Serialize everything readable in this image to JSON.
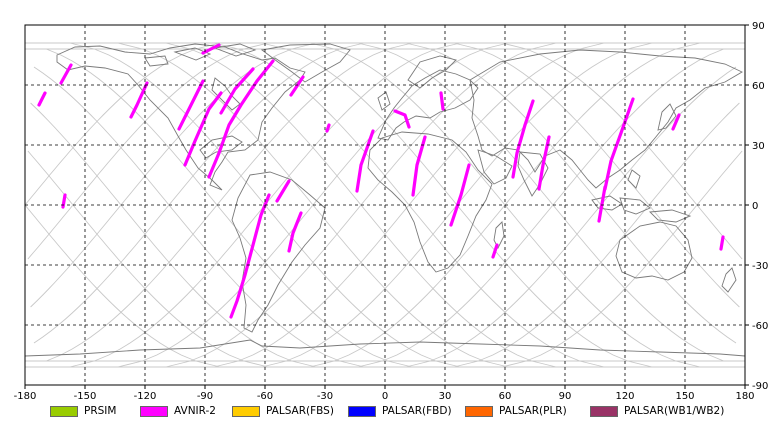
{
  "map": {
    "x_ticks": [
      "-180",
      "-150",
      "-120",
      "-90",
      "-60",
      "-30",
      "0",
      "30",
      "60",
      "90",
      "120",
      "150",
      "180"
    ],
    "y_ticks": [
      "90",
      "60",
      "30",
      "0",
      "-30",
      "-60",
      "-90"
    ],
    "grid_style": "dashed",
    "track_color": "#c8c8c8",
    "coast_color": "#7a7a7a",
    "observation_color": "#ff00ff"
  },
  "legend": [
    {
      "label": "PRSIM",
      "color": "#99cc00"
    },
    {
      "label": "AVNIR-2",
      "color": "#ff00ff"
    },
    {
      "label": "PALSAR(FBS)",
      "color": "#ffcc00"
    },
    {
      "label": "PALSAR(FBD)",
      "color": "#0000ff"
    },
    {
      "label": "PALSAR(PLR)",
      "color": "#ff6600"
    },
    {
      "label": "PALSAR(WB1/WB2)",
      "color": "#993366"
    }
  ],
  "chart_data": {
    "type": "map",
    "xlim": [
      -180,
      180
    ],
    "ylim": [
      -90,
      90
    ],
    "grid": true,
    "legend_position": "bottom",
    "legend_entries": [
      "PRSIM",
      "AVNIR-2",
      "PALSAR(FBS)",
      "PALSAR(FBD)",
      "PALSAR(PLR)",
      "PALSAR(WB1/WB2)"
    ],
    "observation_segments": [
      {
        "sensor": "AVNIR-2",
        "points": [
          [
            -157,
            70
          ],
          [
            -162,
            61
          ]
        ]
      },
      {
        "sensor": "AVNIR-2",
        "points": [
          [
            -170,
            56
          ],
          [
            -173,
            50
          ]
        ]
      },
      {
        "sensor": "AVNIR-2",
        "points": [
          [
            -160,
            5
          ],
          [
            -161,
            -1
          ]
        ]
      },
      {
        "sensor": "AVNIR-2",
        "points": [
          [
            -119,
            61
          ],
          [
            -124,
            50
          ],
          [
            -127,
            44
          ]
        ]
      },
      {
        "sensor": "AVNIR-2",
        "points": [
          [
            -91,
            76
          ],
          [
            -83,
            80
          ]
        ]
      },
      {
        "sensor": "AVNIR-2",
        "points": [
          [
            -91,
            62
          ],
          [
            -97,
            50
          ],
          [
            -103,
            38
          ]
        ]
      },
      {
        "sensor": "AVNIR-2",
        "points": [
          [
            -82,
            56
          ],
          [
            -88,
            48
          ],
          [
            -95,
            32
          ],
          [
            -100,
            20
          ]
        ]
      },
      {
        "sensor": "AVNIR-2",
        "points": [
          [
            -66,
            68
          ],
          [
            -75,
            58
          ],
          [
            -82,
            46
          ]
        ]
      },
      {
        "sensor": "AVNIR-2",
        "points": [
          [
            -56,
            72
          ],
          [
            -64,
            62
          ],
          [
            -72,
            50
          ],
          [
            -78,
            40
          ],
          [
            -83,
            26
          ],
          [
            -88,
            14
          ]
        ]
      },
      {
        "sensor": "AVNIR-2",
        "points": [
          [
            -58,
            5
          ],
          [
            -62,
            -5
          ],
          [
            -66,
            -20
          ],
          [
            -70,
            -35
          ],
          [
            -74,
            -48
          ],
          [
            -77,
            -56
          ]
        ]
      },
      {
        "sensor": "AVNIR-2",
        "points": [
          [
            -48,
            12
          ],
          [
            -54,
            2
          ]
        ]
      },
      {
        "sensor": "AVNIR-2",
        "points": [
          [
            -42,
            -4
          ],
          [
            -46,
            -14
          ],
          [
            -48,
            -23
          ]
        ]
      },
      {
        "sensor": "AVNIR-2",
        "points": [
          [
            -41,
            64
          ],
          [
            -47,
            55
          ]
        ]
      },
      {
        "sensor": "AVNIR-2",
        "points": [
          [
            -28,
            40
          ],
          [
            -29,
            37
          ]
        ]
      },
      {
        "sensor": "AVNIR-2",
        "points": [
          [
            -6,
            37
          ],
          [
            -12,
            20
          ],
          [
            -14,
            7
          ]
        ]
      },
      {
        "sensor": "AVNIR-2",
        "points": [
          [
            5,
            47
          ],
          [
            10,
            45
          ],
          [
            12,
            39
          ]
        ]
      },
      {
        "sensor": "AVNIR-2",
        "points": [
          [
            28,
            56
          ],
          [
            29,
            48
          ]
        ]
      },
      {
        "sensor": "AVNIR-2",
        "points": [
          [
            20,
            34
          ],
          [
            16,
            20
          ],
          [
            14,
            5
          ]
        ]
      },
      {
        "sensor": "AVNIR-2",
        "points": [
          [
            42,
            20
          ],
          [
            38,
            5
          ],
          [
            33,
            -10
          ]
        ]
      },
      {
        "sensor": "AVNIR-2",
        "points": [
          [
            56,
            -20
          ],
          [
            54,
            -26
          ]
        ]
      },
      {
        "sensor": "AVNIR-2",
        "points": [
          [
            74,
            52
          ],
          [
            70,
            40
          ],
          [
            66,
            26
          ],
          [
            64,
            14
          ]
        ]
      },
      {
        "sensor": "AVNIR-2",
        "points": [
          [
            82,
            34
          ],
          [
            79,
            20
          ],
          [
            77,
            8
          ]
        ]
      },
      {
        "sensor": "AVNIR-2",
        "points": [
          [
            124,
            53
          ],
          [
            118,
            36
          ],
          [
            113,
            22
          ],
          [
            110,
            8
          ]
        ]
      },
      {
        "sensor": "AVNIR-2",
        "points": [
          [
            110,
            9
          ],
          [
            107,
            -8
          ]
        ]
      },
      {
        "sensor": "AVNIR-2",
        "points": [
          [
            147,
            45
          ],
          [
            144,
            38
          ]
        ]
      },
      {
        "sensor": "AVNIR-2",
        "points": [
          [
            169,
            -16
          ],
          [
            168,
            -22
          ]
        ]
      }
    ]
  }
}
